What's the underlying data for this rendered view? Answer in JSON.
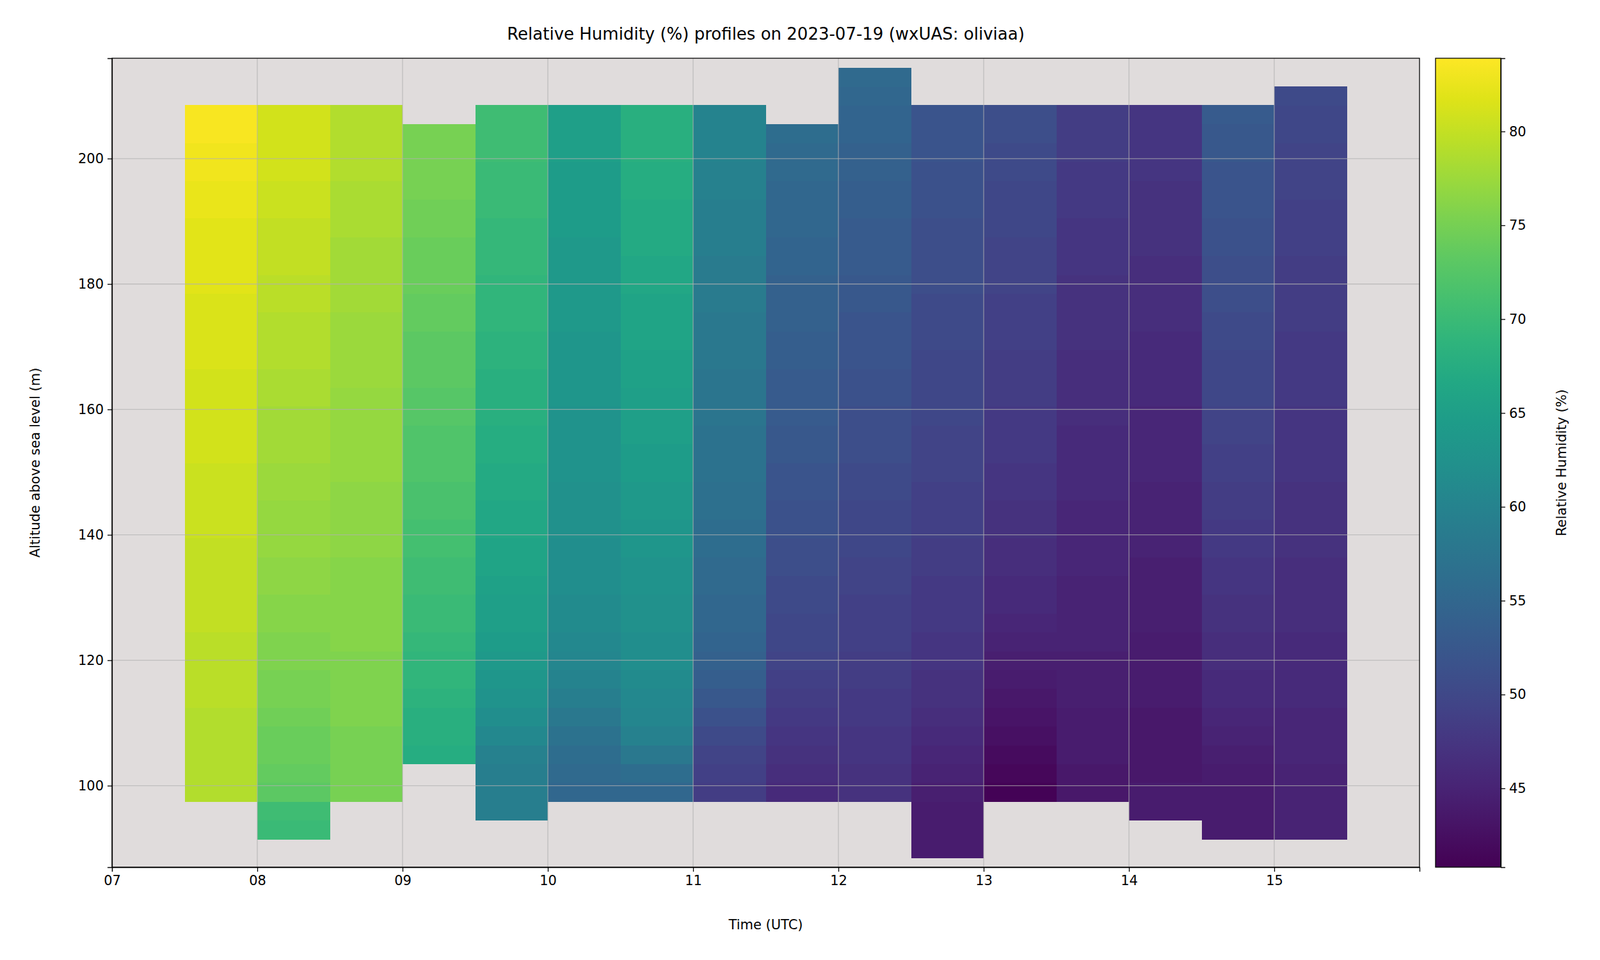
{
  "chart_data": {
    "type": "heatmap",
    "title": "Relative Humidity (%) profiles on 2023-07-19 (wxUAS: oliviaa)",
    "x_label": "Time (UTC)",
    "y_label": "Altitude above sea level (m)",
    "xlim": [
      7,
      16
    ],
    "xticks": [
      {
        "value": 7,
        "label": "07"
      },
      {
        "value": 8,
        "label": "08"
      },
      {
        "value": 9,
        "label": "09"
      },
      {
        "value": 10,
        "label": "10"
      },
      {
        "value": 11,
        "label": "11"
      },
      {
        "value": 12,
        "label": "12"
      },
      {
        "value": 13,
        "label": "13"
      },
      {
        "value": 14,
        "label": "14"
      },
      {
        "value": 15,
        "label": "15"
      }
    ],
    "ylim": [
      87,
      216
    ],
    "yticks": [
      100,
      120,
      140,
      160,
      180,
      200
    ],
    "grid": true,
    "x_edges": [
      7.5,
      8,
      8.5,
      9,
      9.5,
      10,
      10.5,
      11,
      11.5,
      12,
      12.5,
      13,
      13.5,
      14,
      14.5,
      15,
      15.5
    ],
    "y_edges": [
      88.5,
      91.5,
      94.5,
      97.5,
      100.5,
      103.5,
      106.5,
      109.5,
      112.5,
      115.5,
      118.5,
      121.5,
      124.5,
      127.5,
      130.5,
      133.5,
      136.5,
      139.5,
      142.5,
      145.5,
      148.5,
      151.5,
      154.5,
      157.5,
      160.5,
      163.5,
      166.5,
      169.5,
      172.5,
      175.5,
      178.5,
      181.5,
      184.5,
      187.5,
      190.5,
      193.5,
      196.5,
      199.5,
      202.5,
      205.5,
      208.5,
      211.5,
      214.5
    ],
    "cells": [
      [
        null,
        null,
        null,
        79,
        79,
        79,
        79,
        79,
        79.5,
        79.5,
        79.5,
        79.5,
        80,
        80,
        80,
        80,
        80,
        80.5,
        80.5,
        80.5,
        80.5,
        81,
        81,
        81,
        81,
        81,
        81.5,
        81.5,
        81.5,
        81.5,
        82,
        82,
        82,
        82,
        82.5,
        82.5,
        83,
        83,
        83.5,
        83.5,
        null,
        null
      ],
      [
        null,
        70,
        70.5,
        73,
        73.5,
        74,
        74,
        74.5,
        75,
        75,
        75.5,
        75.5,
        76,
        76,
        76.5,
        76.5,
        77,
        77,
        77,
        77.5,
        77.5,
        78,
        78,
        78,
        78.5,
        78.5,
        79,
        79,
        79,
        79.5,
        79.5,
        80,
        80,
        80,
        80.5,
        80.5,
        81,
        81,
        81,
        81,
        null,
        null
      ],
      [
        null,
        null,
        null,
        75,
        75,
        75,
        75,
        75.5,
        75.5,
        75.5,
        75.5,
        76,
        76,
        76,
        76,
        76,
        76.5,
        76.5,
        76.5,
        76.5,
        77,
        77,
        77,
        77,
        77,
        77.5,
        77.5,
        77.5,
        77.5,
        78,
        78,
        78,
        78,
        78.5,
        78.5,
        78.5,
        79,
        79,
        79,
        79,
        null,
        null
      ],
      [
        null,
        null,
        null,
        null,
        null,
        67.5,
        68,
        68,
        68.5,
        69,
        69,
        69.5,
        70,
        70,
        70.5,
        70.5,
        71,
        71,
        71.5,
        71.5,
        72,
        72,
        72,
        72.5,
        72.5,
        73,
        73,
        73,
        73.5,
        73.5,
        74,
        74,
        74,
        74.5,
        74.5,
        75,
        75,
        75,
        75,
        null,
        null,
        null
      ],
      [
        null,
        null,
        59,
        59,
        59,
        59.5,
        61,
        62,
        63,
        63.5,
        64,
        64.5,
        65,
        65,
        65.5,
        66,
        66,
        66.5,
        66.5,
        67,
        67,
        67.5,
        67.5,
        68,
        68,
        68,
        68.5,
        68.5,
        69,
        69,
        69,
        69.5,
        69.5,
        69.5,
        70,
        70,
        70,
        70.5,
        70.5,
        70.5,
        null,
        null
      ],
      [
        null,
        null,
        null,
        55,
        55.5,
        56,
        57,
        58,
        59,
        60,
        60.5,
        61,
        61.5,
        61.5,
        62,
        62,
        62,
        62.5,
        62.5,
        62.5,
        63,
        63,
        63,
        63,
        63.5,
        63.5,
        63.5,
        63.5,
        64,
        64,
        64,
        64,
        64,
        64.5,
        64.5,
        64.5,
        64.5,
        65,
        65,
        65,
        null,
        null
      ],
      [
        null,
        null,
        null,
        55,
        56,
        58,
        59.5,
        60.5,
        61,
        61.5,
        62,
        62,
        62.5,
        62.5,
        63,
        63,
        63.5,
        63.5,
        64,
        64,
        64.5,
        64.5,
        65,
        65,
        65,
        65.5,
        65.5,
        66,
        66,
        66,
        66.5,
        66.5,
        67,
        67,
        67,
        67.5,
        67.5,
        68,
        68,
        68,
        null,
        null
      ],
      [
        null,
        null,
        null,
        48.5,
        49,
        49.5,
        50.5,
        51.5,
        52.5,
        53.5,
        54,
        54.5,
        55,
        55,
        55.5,
        55.5,
        56,
        56,
        56.5,
        56.5,
        57,
        57,
        57,
        57.5,
        57.5,
        57.5,
        58,
        58,
        58,
        58.5,
        58.5,
        58.5,
        59,
        59,
        59,
        59.5,
        59.5,
        60,
        60,
        60,
        null,
        null
      ],
      [
        null,
        null,
        null,
        46,
        46.5,
        47,
        47.5,
        48,
        48.5,
        49,
        49.5,
        50,
        50,
        50.5,
        50.5,
        51,
        51,
        51.5,
        51.5,
        52,
        52,
        52.5,
        52.5,
        53,
        53,
        53,
        53.5,
        53.5,
        54,
        54,
        54,
        54.5,
        54.5,
        55,
        55,
        55,
        55.5,
        55.5,
        56,
        null,
        null,
        null
      ],
      [
        null,
        null,
        null,
        47,
        47,
        47.5,
        47.5,
        48,
        48,
        48.5,
        48.5,
        49,
        49,
        49,
        49.5,
        49.5,
        50,
        50,
        50,
        50.5,
        50.5,
        51,
        51,
        51,
        51.5,
        51.5,
        52,
        52,
        52,
        52.5,
        52.5,
        53,
        53,
        53,
        53.5,
        53.5,
        54,
        54,
        54.5,
        54.5,
        55,
        55.5
      ],
      [
        44,
        44,
        44,
        44.5,
        45,
        45.5,
        46,
        46.5,
        47,
        47,
        47.5,
        47.5,
        48,
        48,
        48,
        48.5,
        48.5,
        49,
        49,
        49,
        49.5,
        49.5,
        49.5,
        50,
        50,
        50,
        50,
        50.5,
        50.5,
        50.5,
        51,
        51,
        51,
        51,
        51.5,
        51.5,
        51.5,
        52,
        52,
        52,
        null,
        null
      ],
      [
        null,
        null,
        null,
        41,
        41.5,
        42,
        42.5,
        43,
        43.5,
        44,
        44.5,
        45,
        45.5,
        46,
        46,
        46.5,
        46.5,
        47,
        47,
        47.5,
        47.5,
        48,
        48,
        48,
        48.5,
        48.5,
        48.5,
        49,
        49,
        49,
        49.5,
        49.5,
        49.5,
        50,
        50,
        50,
        50.5,
        50.5,
        51,
        51,
        null,
        null
      ],
      [
        null,
        null,
        null,
        43.5,
        43.5,
        44,
        44,
        44,
        44.5,
        44.5,
        44.5,
        45,
        45,
        45,
        45,
        45.5,
        45.5,
        45.5,
        45.5,
        46,
        46,
        46,
        46,
        46.5,
        46.5,
        46.5,
        46.5,
        47,
        47,
        47,
        47,
        47.5,
        47.5,
        47.5,
        48,
        48,
        48,
        48.5,
        48.5,
        48.5,
        null,
        null
      ],
      [
        null,
        null,
        44,
        44,
        43.5,
        43.5,
        43.5,
        43.5,
        44,
        44,
        44,
        44,
        44.5,
        44.5,
        44.5,
        44.5,
        45,
        45,
        45,
        45,
        45.5,
        45.5,
        45.5,
        45.5,
        46,
        46,
        46,
        46,
        46.5,
        46.5,
        46.5,
        46.5,
        47,
        47,
        47,
        47,
        47.5,
        47.5,
        47.5,
        47.5,
        null,
        null
      ],
      [
        null,
        44,
        44,
        44,
        44,
        44.5,
        45,
        45.5,
        46,
        46,
        46.5,
        46.5,
        47,
        47,
        47.5,
        47.5,
        48,
        48,
        48.5,
        48.5,
        49,
        49,
        49.5,
        49.5,
        50,
        50,
        50,
        50.5,
        50.5,
        51,
        51,
        51,
        51.5,
        51.5,
        52,
        52,
        52,
        52.5,
        52.5,
        53,
        null,
        null
      ],
      [
        null,
        45,
        45,
        45,
        45,
        45.5,
        45.5,
        45.5,
        46,
        46,
        46,
        46,
        46.5,
        46.5,
        46.5,
        46.5,
        47,
        47,
        47,
        47,
        47.5,
        47.5,
        47.5,
        47.5,
        48,
        48,
        48,
        48,
        48.5,
        48.5,
        48.5,
        48.5,
        49,
        49,
        49,
        49.5,
        49.5,
        49.5,
        50,
        50,
        50.5,
        null
      ]
    ],
    "colorbar": {
      "label": "Relative Humidity (%)",
      "range": [
        40.8,
        83.9
      ],
      "ticks": [
        45,
        50,
        55,
        60,
        65,
        70,
        75,
        80
      ]
    }
  }
}
